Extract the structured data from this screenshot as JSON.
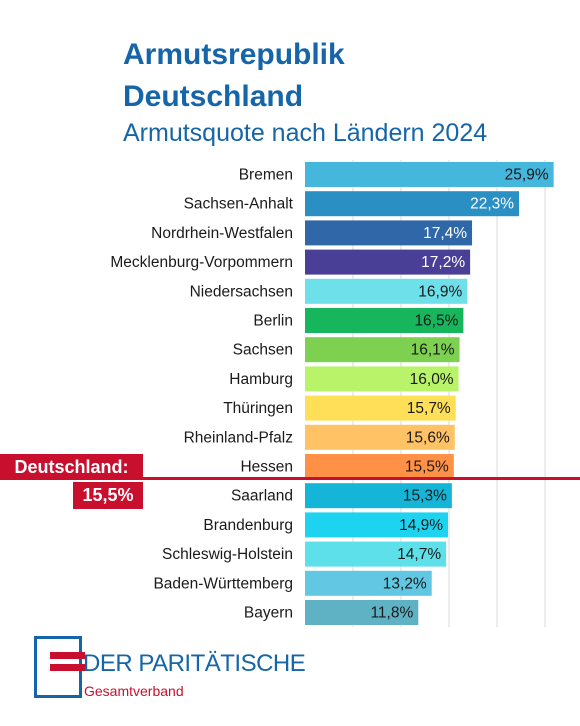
{
  "title_line1": "Armutsrepublik",
  "title_line2": "Deutschland",
  "subtitle": "Armutsquote nach Ländern 2024",
  "reference": {
    "label": "Deutschland:",
    "value_label": "15,5%",
    "value": 15.5
  },
  "logo": {
    "name": "DER PARITÄTISCHE",
    "sub": "Gesamtverband"
  },
  "colors": {
    "title": "#1565a8",
    "accent_red": "#c8102e"
  },
  "chart_data": {
    "type": "bar",
    "orientation": "horizontal",
    "title": "Armutsrepublik Deutschland",
    "subtitle": "Armutsquote nach Ländern 2024",
    "xlabel": "",
    "ylabel": "",
    "unit": "%",
    "xlim": [
      0,
      27
    ],
    "grid": true,
    "categories": [
      "Bremen",
      "Sachsen-Anhalt",
      "Nordrhein-Westfalen",
      "Mecklenburg-Vorpommern",
      "Niedersachsen",
      "Berlin",
      "Sachsen",
      "Hamburg",
      "Thüringen",
      "Rheinland-Pfalz",
      "Hessen",
      "Saarland",
      "Brandenburg",
      "Schleswig-Holstein",
      "Baden-Württemberg",
      "Bayern"
    ],
    "values": [
      25.9,
      22.3,
      17.4,
      17.2,
      16.9,
      16.5,
      16.1,
      16.0,
      15.7,
      15.6,
      15.5,
      15.3,
      14.9,
      14.7,
      13.2,
      11.8
    ],
    "value_labels": [
      "25,9%",
      "22,3%",
      "17,4%",
      "17,2%",
      "16,9%",
      "16,5%",
      "16,1%",
      "16,0%",
      "15,7%",
      "15,6%",
      "15,5%",
      "15,3%",
      "14,9%",
      "14,7%",
      "13,2%",
      "11,8%"
    ],
    "bar_colors": [
      "#45b6dc",
      "#2a8fc2",
      "#2f67a8",
      "#4a3f96",
      "#6ee0ea",
      "#17b65d",
      "#7ed050",
      "#b9f36a",
      "#ffdf57",
      "#ffc264",
      "#ff9146",
      "#14b5d6",
      "#1ed3f0",
      "#5ee0eb",
      "#62c7e3",
      "#5fb2c4"
    ],
    "label_colors": [
      "#1a1a1a",
      "#ffffff",
      "#ffffff",
      "#ffffff",
      "#1a1a1a",
      "#1a1a1a",
      "#1a1a1a",
      "#1a1a1a",
      "#1a1a1a",
      "#1a1a1a",
      "#1a1a1a",
      "#1a1a1a",
      "#1a1a1a",
      "#1a1a1a",
      "#1a1a1a",
      "#1a1a1a"
    ]
  }
}
